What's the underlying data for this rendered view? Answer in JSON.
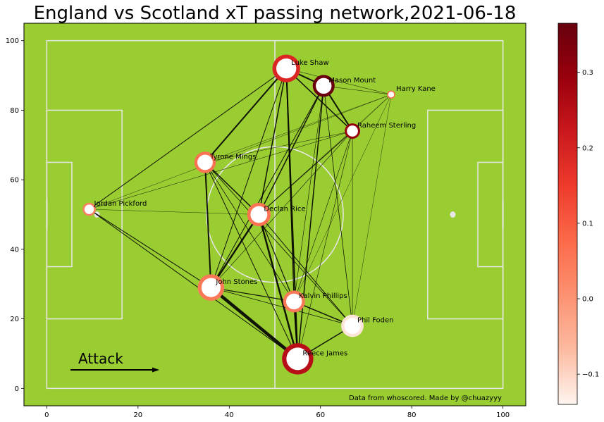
{
  "chart_data": {
    "type": "scatter",
    "title": "England vs Scotland xT passing network,2021-06-18",
    "xlim": [
      -5,
      105
    ],
    "ylim": [
      -5,
      105
    ],
    "xticks": [
      "0",
      "20",
      "40",
      "60",
      "80",
      "100"
    ],
    "yticks": [
      "0",
      "20",
      "40",
      "60",
      "80",
      "100"
    ],
    "pitch_color": "#9acd32",
    "line_color": "#e6e6e6",
    "annotation": "Attack",
    "credit": "Data from whoscored. Made by @chuazyyy",
    "players": [
      {
        "name": "Luke Shaw",
        "x": 52.5,
        "y": 92.0,
        "xt": 0.19,
        "size": 15
      },
      {
        "name": "Mason Mount",
        "x": 60.7,
        "y": 87.0,
        "xt": 0.36,
        "size": 8.5
      },
      {
        "name": "Harry Kane",
        "x": 75.5,
        "y": 84.5,
        "xt": 0.07,
        "size": 0.4
      },
      {
        "name": "Raheem Sterling",
        "x": 67.0,
        "y": 74.0,
        "xt": 0.3,
        "size": 3.4
      },
      {
        "name": "Tyrone Mings",
        "x": 34.7,
        "y": 65.0,
        "xt": 0.06,
        "size": 8
      },
      {
        "name": "Jordan Pickford",
        "x": 9.3,
        "y": 51.5,
        "xt": 0.04,
        "size": 2.2
      },
      {
        "name": "Declan Rice",
        "x": 46.5,
        "y": 50.0,
        "xt": 0.06,
        "size": 10
      },
      {
        "name": "John Stones",
        "x": 36.0,
        "y": 29.0,
        "xt": 0.05,
        "size": 13.5
      },
      {
        "name": "Kalvin Phillips",
        "x": 54.2,
        "y": 25.0,
        "xt": 0.05,
        "size": 8.5
      },
      {
        "name": "Phil Foden",
        "x": 67.0,
        "y": 18.0,
        "xt": -0.12,
        "size": 9
      },
      {
        "name": "Reece James",
        "x": 55.0,
        "y": 8.5,
        "xt": 0.25,
        "size": 20
      }
    ],
    "edges": [
      [
        "Jordan Pickford",
        "Luke Shaw",
        1
      ],
      [
        "Jordan Pickford",
        "Raheem Sterling",
        0.5
      ],
      [
        "Jordan Pickford",
        "Harry Kane",
        0.4
      ],
      [
        "Jordan Pickford",
        "John Stones",
        1
      ],
      [
        "Jordan Pickford",
        "Reece James",
        1
      ],
      [
        "Jordan Pickford",
        "Declan Rice",
        0.4
      ],
      [
        "Luke Shaw",
        "Mason Mount",
        2
      ],
      [
        "Luke Shaw",
        "Raheem Sterling",
        1.5
      ],
      [
        "Luke Shaw",
        "Tyrone Mings",
        2
      ],
      [
        "Luke Shaw",
        "Declan Rice",
        1.5
      ],
      [
        "Luke Shaw",
        "Reece James",
        2
      ],
      [
        "Luke Shaw",
        "Kalvin Phillips",
        1.2
      ],
      [
        "Luke Shaw",
        "Harry Kane",
        0.5
      ],
      [
        "Luke Shaw",
        "John Stones",
        1
      ],
      [
        "Mason Mount",
        "Raheem Sterling",
        2
      ],
      [
        "Mason Mount",
        "Declan Rice",
        1.5
      ],
      [
        "Mason Mount",
        "Reece James",
        1.5
      ],
      [
        "Mason Mount",
        "Harry Kane",
        0.5
      ],
      [
        "Mason Mount",
        "Phil Foden",
        0.8
      ],
      [
        "Mason Mount",
        "John Stones",
        1
      ],
      [
        "Mason Mount",
        "Kalvin Phillips",
        0.6
      ],
      [
        "Harry Kane",
        "Raheem Sterling",
        0.5
      ],
      [
        "Harry Kane",
        "Declan Rice",
        0.4
      ],
      [
        "Harry Kane",
        "Phil Foden",
        0.4
      ],
      [
        "Harry Kane",
        "Tyrone Mings",
        0.4
      ],
      [
        "Harry Kane",
        "Kalvin Phillips",
        0.4
      ],
      [
        "Raheem Sterling",
        "Declan Rice",
        1
      ],
      [
        "Raheem Sterling",
        "Phil Foden",
        0.6
      ],
      [
        "Raheem Sterling",
        "Tyrone Mings",
        0.5
      ],
      [
        "Raheem Sterling",
        "Kalvin Phillips",
        0.6
      ],
      [
        "Raheem Sterling",
        "Reece James",
        0.6
      ],
      [
        "Raheem Sterling",
        "John Stones",
        0.6
      ],
      [
        "Tyrone Mings",
        "Declan Rice",
        1.5
      ],
      [
        "Tyrone Mings",
        "John Stones",
        2
      ],
      [
        "Tyrone Mings",
        "Phil Foden",
        0.8
      ],
      [
        "Tyrone Mings",
        "Reece James",
        1
      ],
      [
        "Tyrone Mings",
        "Kalvin Phillips",
        0.8
      ],
      [
        "Declan Rice",
        "John Stones",
        2.5
      ],
      [
        "Declan Rice",
        "Reece James",
        2.5
      ],
      [
        "Declan Rice",
        "Kalvin Phillips",
        1.2
      ],
      [
        "Declan Rice",
        "Phil Foden",
        1
      ],
      [
        "John Stones",
        "Reece James",
        4.5
      ],
      [
        "John Stones",
        "Kalvin Phillips",
        1.2
      ],
      [
        "John Stones",
        "Phil Foden",
        0.8
      ],
      [
        "Kalvin Phillips",
        "Reece James",
        2
      ],
      [
        "Kalvin Phillips",
        "Phil Foden",
        1.5
      ],
      [
        "Phil Foden",
        "Reece James",
        1.5
      ]
    ],
    "colorbar": {
      "range": [
        -0.14,
        0.365
      ],
      "ticks": [
        {
          "value": -0.1,
          "label": "−0.1"
        },
        {
          "value": 0.0,
          "label": "0.0"
        },
        {
          "value": 0.1,
          "label": "0.1"
        },
        {
          "value": 0.2,
          "label": "0.2"
        },
        {
          "value": 0.3,
          "label": "0.3"
        }
      ],
      "colors": [
        "#fff5f0",
        "#fcbba1",
        "#fc9272",
        "#fb6a4a",
        "#ef3b2c",
        "#cb181d",
        "#99000d",
        "#67000d"
      ]
    }
  }
}
